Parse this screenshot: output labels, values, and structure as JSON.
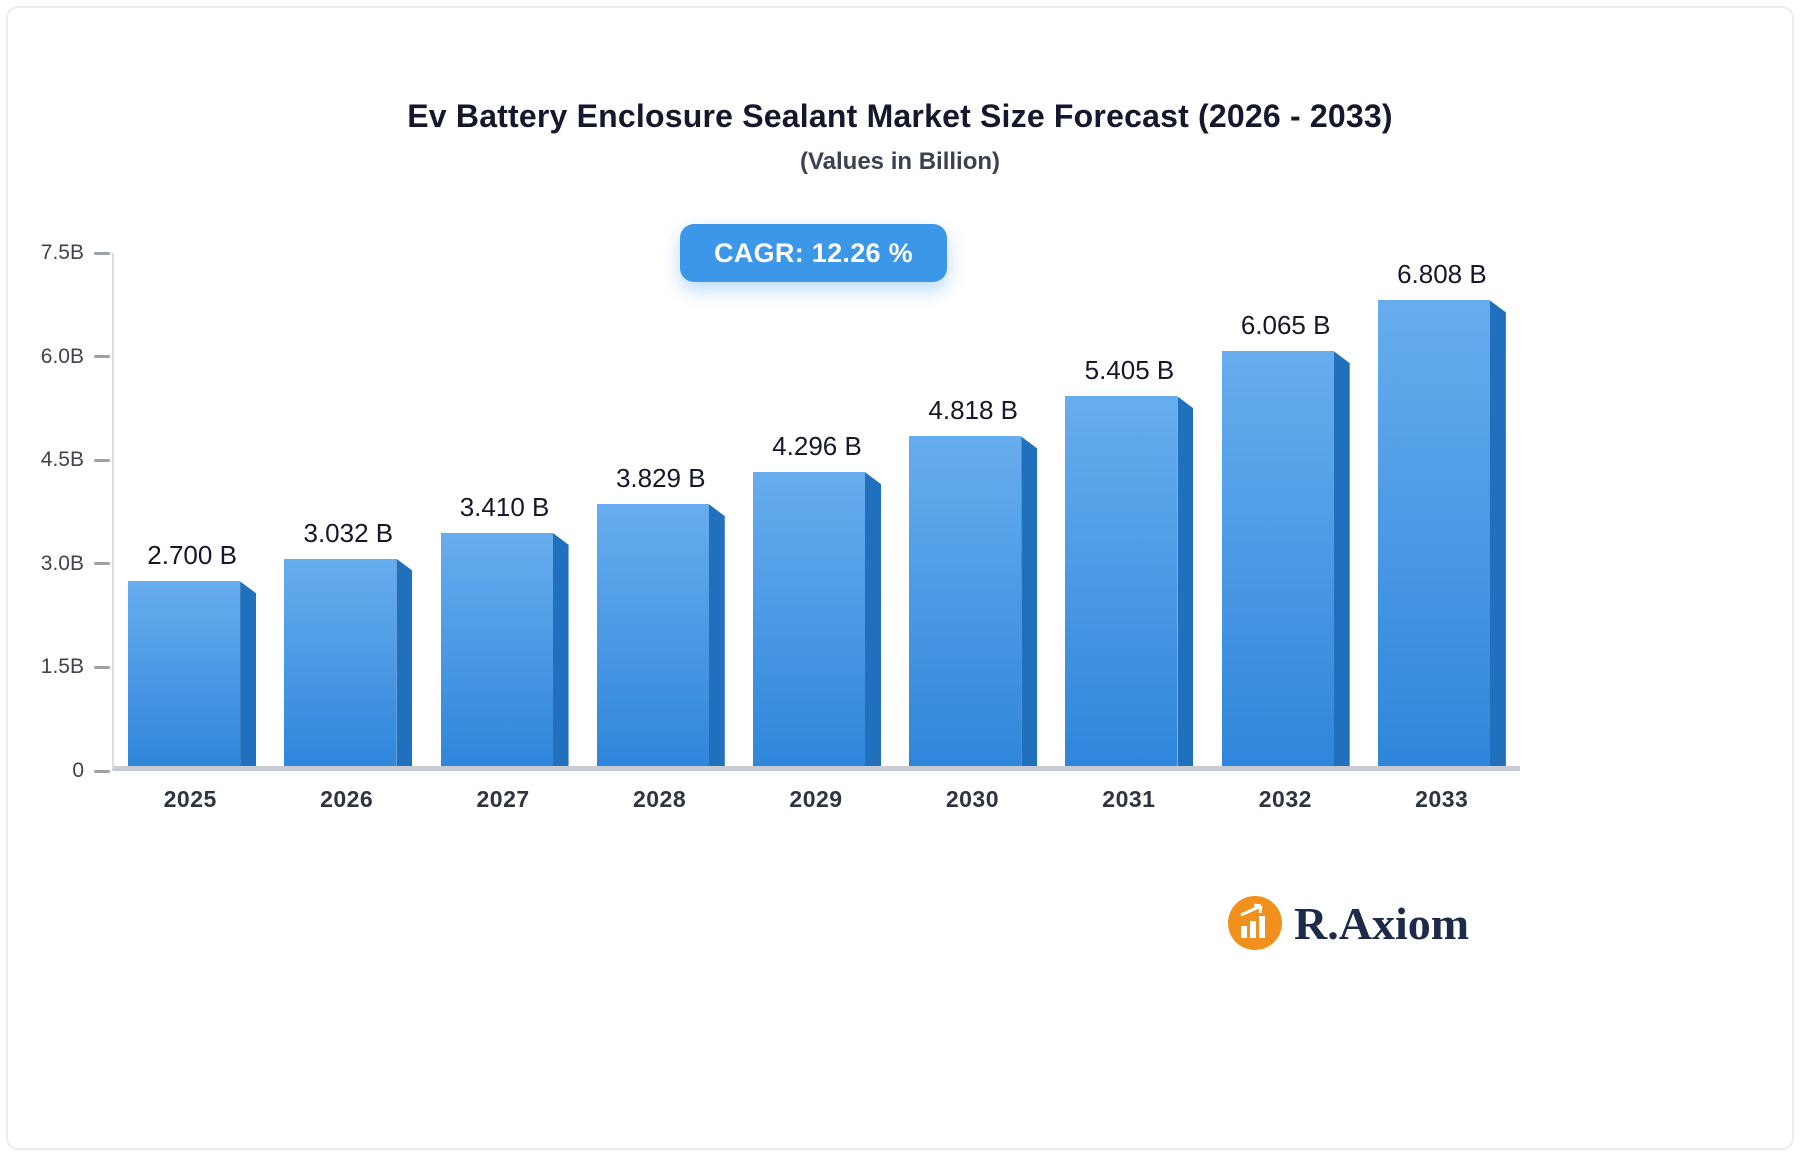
{
  "title": "Ev Battery Enclosure Sealant Market Size Forecast (2026 - 2033)",
  "subtitle": "(Values in Billion)",
  "badge": {
    "label": "CAGR: 12.26 %"
  },
  "logo": {
    "text": "R.Axiom",
    "icon": "bar-chart-growth-icon",
    "icon_color": "#F1901D"
  },
  "chart_data": {
    "type": "bar",
    "categories": [
      "2025",
      "2026",
      "2027",
      "2028",
      "2029",
      "2030",
      "2031",
      "2032",
      "2033"
    ],
    "values": [
      2.7,
      3.032,
      3.41,
      3.829,
      4.296,
      4.818,
      5.405,
      6.065,
      6.808
    ],
    "value_labels": [
      "2.700 B",
      "3.032 B",
      "3.410 B",
      "3.829 B",
      "4.296 B",
      "4.818 B",
      "5.405 B",
      "6.065 B",
      "6.808 B"
    ],
    "title": "Ev Battery Enclosure Sealant Market Size Forecast (2026 - 2033)",
    "xlabel": "",
    "ylabel": "",
    "ylim": [
      0,
      7.5
    ],
    "ytick_labels": [
      "7.5B",
      "6.0B",
      "4.5B",
      "3.0B",
      "1.5B",
      "0"
    ],
    "ytick_values": [
      7.5,
      6.0,
      4.5,
      3.0,
      1.5,
      0
    ],
    "grid": false,
    "legend_position": "none",
    "bar_color_top": "#67ADEE",
    "bar_color_bottom": "#2F86DB",
    "bar_side_color": "#2170BE"
  }
}
